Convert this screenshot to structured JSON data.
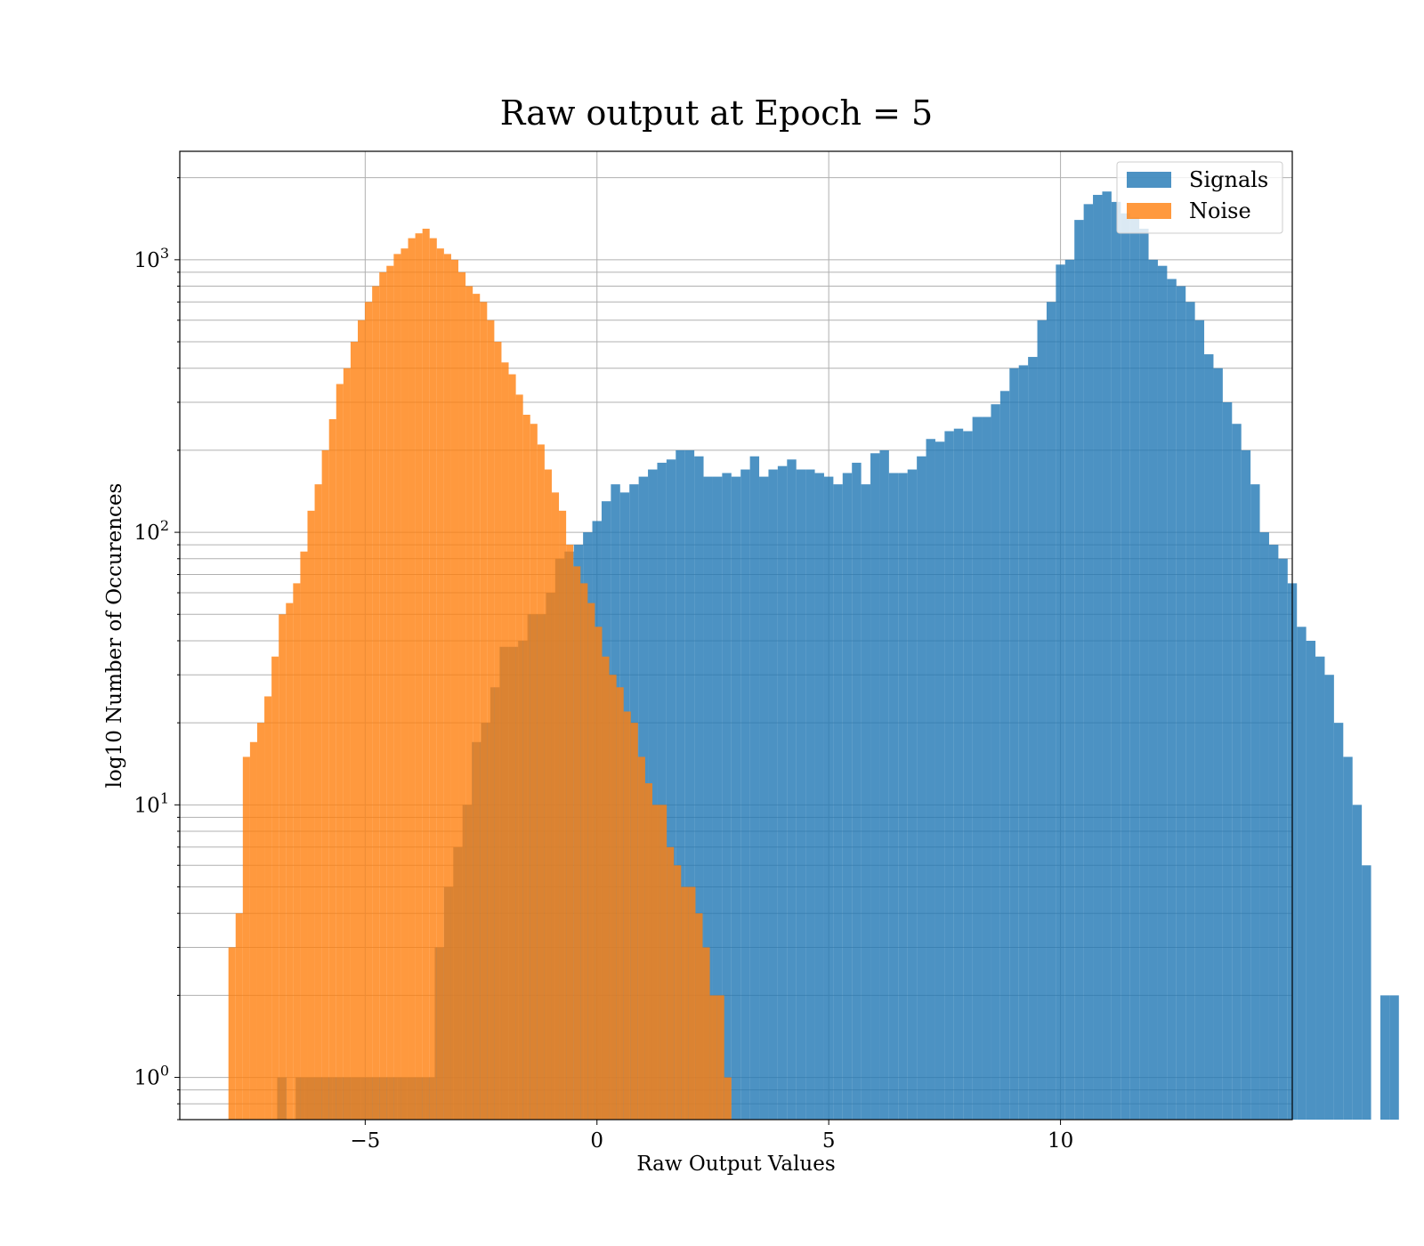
{
  "chart_data": {
    "type": "histogram",
    "title": "Raw output at Epoch = 5",
    "xlabel": "Raw Output Values",
    "ylabel": "log10 Number of Occurences",
    "xlim": [
      -9.0,
      15.0
    ],
    "ylim": [
      0.7,
      2500
    ],
    "yscale": "log",
    "grid": true,
    "legend": "upper right",
    "x_ticks": [
      {
        "value": -5,
        "label": "−5"
      },
      {
        "value": 0,
        "label": "0"
      },
      {
        "value": 5,
        "label": "5"
      },
      {
        "value": 10,
        "label": "10"
      }
    ],
    "y_ticks": [
      {
        "value": 1,
        "base": "10",
        "exp": "0"
      },
      {
        "value": 10,
        "base": "10",
        "exp": "1"
      },
      {
        "value": 100,
        "base": "10",
        "exp": "2"
      },
      {
        "value": 1000,
        "base": "10",
        "exp": "3"
      }
    ],
    "series": [
      {
        "name": "Signals",
        "color": "#1f77b4",
        "bin_start": -6.9,
        "bin_width": 0.2,
        "counts": [
          1,
          0,
          1,
          1,
          1,
          1,
          1,
          1,
          1,
          1,
          1,
          1,
          1,
          1,
          1,
          1,
          1,
          3,
          5,
          7,
          10,
          17,
          20,
          27,
          38,
          38,
          40,
          50,
          50,
          60,
          80,
          85,
          90,
          100,
          110,
          130,
          150,
          140,
          150,
          160,
          170,
          180,
          185,
          200,
          200,
          190,
          160,
          160,
          165,
          160,
          170,
          190,
          160,
          170,
          175,
          185,
          170,
          170,
          165,
          160,
          150,
          165,
          180,
          150,
          195,
          200,
          165,
          165,
          170,
          190,
          220,
          215,
          235,
          240,
          235,
          265,
          265,
          295,
          330,
          400,
          410,
          440,
          600,
          700,
          960,
          1000,
          1400,
          1600,
          1730,
          1780,
          1630,
          1480,
          1430,
          1300,
          1000,
          950,
          850,
          800,
          700,
          600,
          450,
          400,
          300,
          250,
          200,
          150,
          100,
          90,
          80,
          65,
          45,
          40,
          35,
          30,
          20,
          15,
          10,
          6,
          0,
          2,
          2
        ]
      },
      {
        "name": "Noise",
        "color": "#ff7f0e",
        "bin_start": -7.95,
        "bin_width": 0.155,
        "counts": [
          3,
          4,
          15,
          17,
          20,
          25,
          35,
          50,
          55,
          65,
          85,
          120,
          150,
          200,
          260,
          350,
          400,
          500,
          600,
          700,
          800,
          900,
          950,
          1050,
          1100,
          1200,
          1250,
          1300,
          1200,
          1100,
          1050,
          1000,
          900,
          800,
          750,
          700,
          600,
          500,
          420,
          380,
          320,
          270,
          250,
          210,
          170,
          140,
          120,
          90,
          75,
          65,
          55,
          45,
          35,
          30,
          27,
          22,
          20,
          15,
          12,
          10,
          10,
          7,
          6,
          5,
          5,
          4,
          3,
          2,
          2,
          1
        ]
      }
    ]
  }
}
